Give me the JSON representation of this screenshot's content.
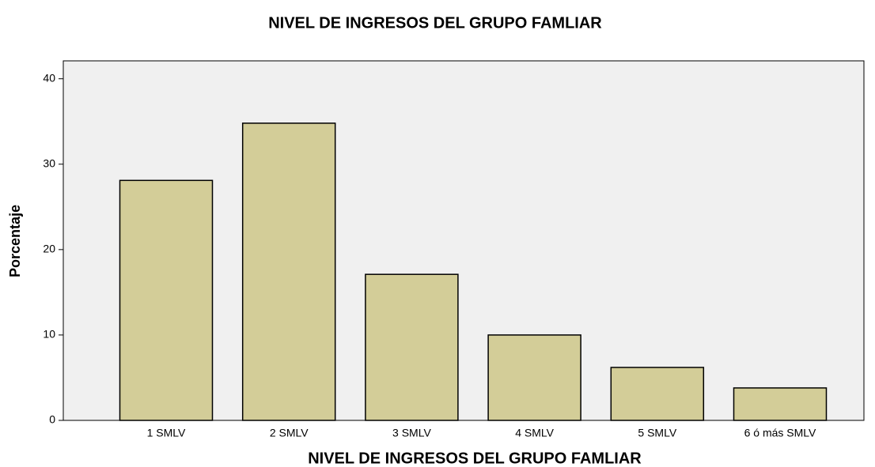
{
  "chart_data": {
    "type": "bar",
    "title": "NIVEL DE INGRESOS DEL GRUPO FAMLIAR",
    "x_label": "NIVEL DE INGRESOS DEL GRUPO FAMLIAR",
    "y_label": "Porcentaje",
    "categories": [
      "1 SMLV",
      "2 SMLV",
      "3 SMLV",
      "4 SMLV",
      "5 SMLV",
      "6 ó más SMLV"
    ],
    "values": [
      28.1,
      34.8,
      17.1,
      10.0,
      6.2,
      3.8
    ],
    "color": "#d3cd98",
    "ylim": [
      0,
      42.1
    ],
    "yticks": [
      0,
      10,
      20,
      30,
      40
    ],
    "grid": false
  }
}
